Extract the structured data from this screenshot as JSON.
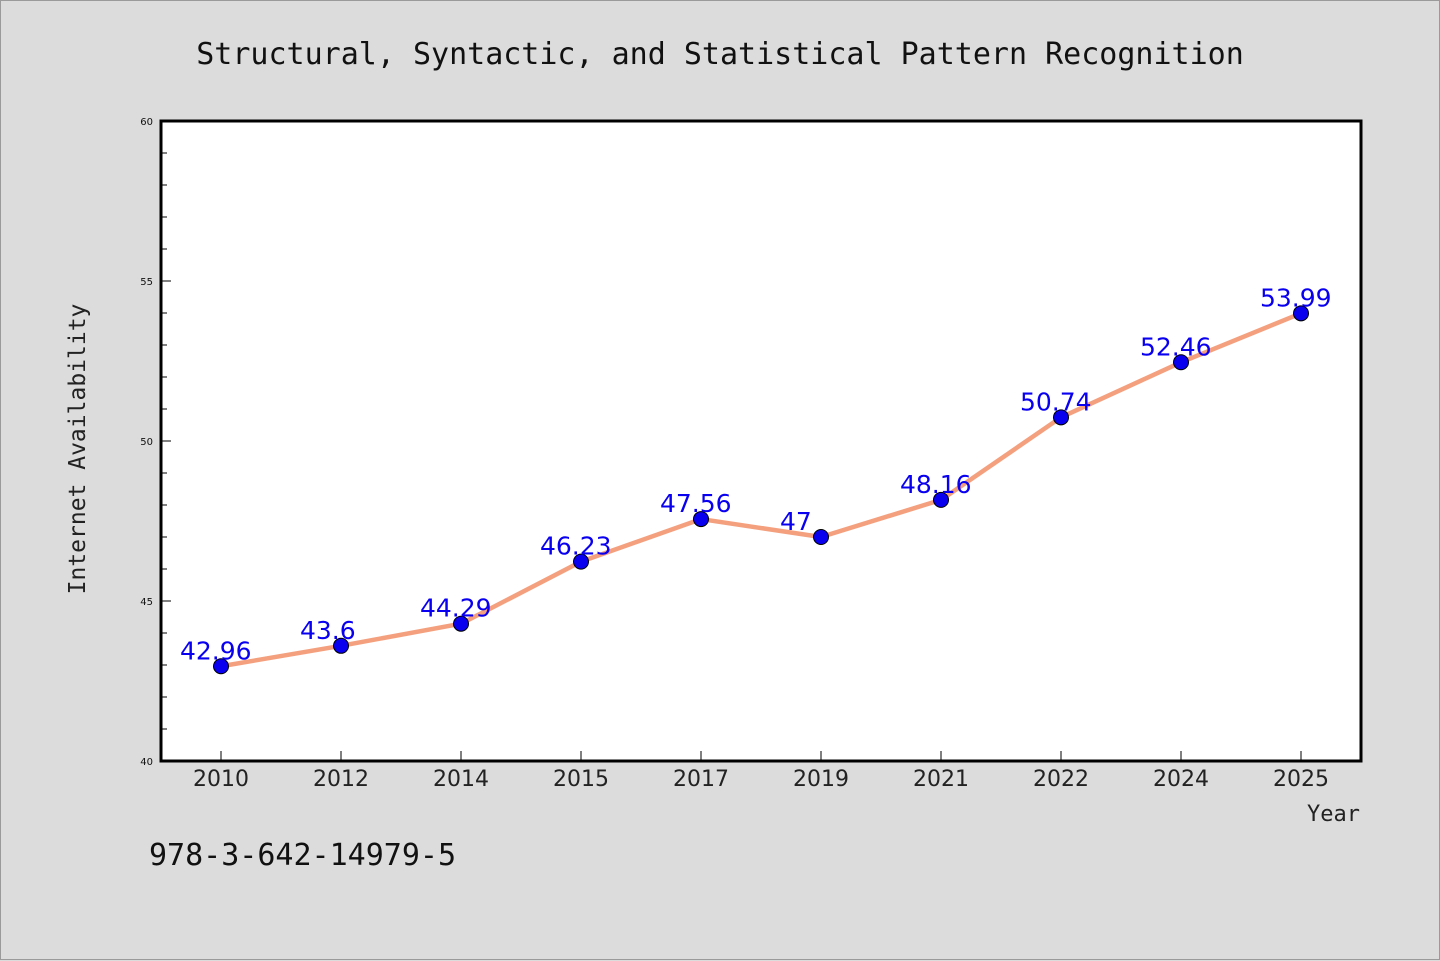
{
  "chart_data": {
    "type": "line",
    "title": "Structural, Syntactic, and Statistical Pattern Recognition",
    "xlabel": "Year",
    "ylabel": "Internet Availability",
    "categories": [
      "2010",
      "2012",
      "2014",
      "2015",
      "2017",
      "2019",
      "2021",
      "2022",
      "2024",
      "2025"
    ],
    "series": [
      {
        "values": [
          42.96,
          43.6,
          44.29,
          46.23,
          47.56,
          47,
          48.16,
          50.74,
          52.46,
          53.99
        ],
        "labels": [
          "42.96",
          "43.6",
          "44.29",
          "46.23",
          "47.56",
          "47",
          "48.16",
          "50.74",
          "52.46",
          "53.99"
        ],
        "line_color": "#f4a07e",
        "marker_color": "#0a00f0",
        "label_color": "#0a00f0"
      }
    ],
    "ylim": [
      40,
      60
    ],
    "yticks": [
      40,
      45,
      50,
      55,
      60
    ],
    "ytick_labels": [
      "40",
      "45",
      "50",
      "55",
      "60"
    ],
    "minor_ytick_step": 1,
    "grid": false,
    "legend": "none"
  },
  "footnote": "978-3-642-14979-5",
  "colors": {
    "background": "#dcdcdc",
    "plot_area": "#ffffff",
    "axes": "#000000"
  }
}
